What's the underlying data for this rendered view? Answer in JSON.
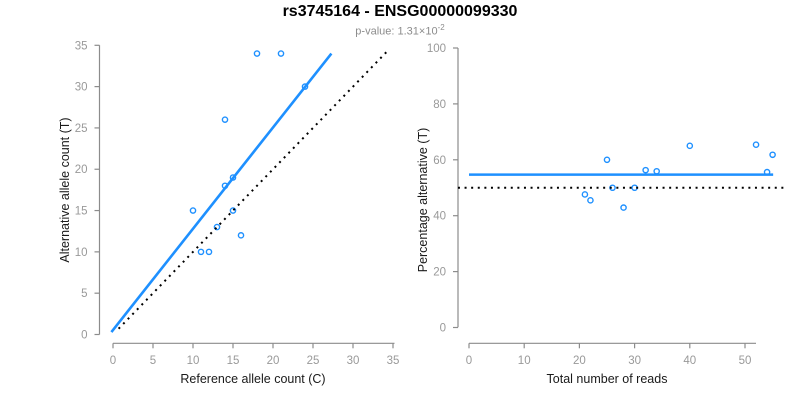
{
  "header": {
    "title": "rs3745164 - ENSG00000099330",
    "subtitle": {
      "prefix": "p-value: 1.31×10",
      "exponent": "-2"
    }
  },
  "colors": {
    "accent_blue": "#1E90FF",
    "line_black": "#000000",
    "axis_gray": "#8c8c8c",
    "tick_label_gray": "#999999",
    "subtitle_gray": "#8c8c8c"
  },
  "chart_data": [
    {
      "id": "left",
      "type": "scatter",
      "xlabel": "Reference allele count (C)",
      "ylabel": "Alternative allele count (T)",
      "xlim": [
        0,
        35
      ],
      "ylim": [
        0,
        35
      ],
      "grid": false,
      "xticks": [
        0,
        5,
        10,
        15,
        20,
        25,
        30,
        35
      ],
      "yticks": [
        0,
        5,
        10,
        15,
        20,
        25,
        30,
        35
      ],
      "points": [
        [
          18,
          34
        ],
        [
          21,
          34
        ],
        [
          24,
          30
        ],
        [
          14,
          26
        ],
        [
          15,
          19
        ],
        [
          14,
          18
        ],
        [
          10,
          15
        ],
        [
          15,
          15
        ],
        [
          13,
          13
        ],
        [
          16,
          12
        ],
        [
          11,
          10
        ],
        [
          12,
          10
        ]
      ],
      "lines": [
        {
          "name": "regression-line",
          "style": "solid",
          "color": "#1E90FF",
          "x1": -0.2,
          "y1": 0.3,
          "x2": 27.3,
          "y2": 34.0
        },
        {
          "name": "identity-line",
          "style": "dotted",
          "color": "#000000",
          "x1": 0.7,
          "y1": 0.7,
          "x2": 34.2,
          "y2": 34.2
        }
      ]
    },
    {
      "id": "right",
      "type": "scatter",
      "xlabel": "Total number of reads",
      "ylabel": "Percentage alternative (T)",
      "xlim": [
        0,
        57
      ],
      "ylim": [
        0,
        100
      ],
      "grid": false,
      "xticks": [
        0,
        10,
        20,
        30,
        40,
        50
      ],
      "yticks": [
        0,
        20,
        40,
        60,
        80,
        100
      ],
      "points": [
        [
          52,
          65.4
        ],
        [
          55,
          61.8
        ],
        [
          54,
          55.6
        ],
        [
          40,
          65.0
        ],
        [
          34,
          55.9
        ],
        [
          32,
          56.3
        ],
        [
          25,
          60.0
        ],
        [
          30,
          50.0
        ],
        [
          26,
          50.0
        ],
        [
          28,
          42.9
        ],
        [
          21,
          47.6
        ],
        [
          22,
          45.5
        ]
      ],
      "lines": [
        {
          "name": "fitted-percentage-line",
          "style": "solid",
          "color": "#1E90FF",
          "x1": 0,
          "y1": 54.7,
          "x2": 55.1,
          "y2": 54.7
        },
        {
          "name": "null-50-percent-line",
          "style": "dotted",
          "color": "#000000",
          "x1": -2,
          "y1": 50,
          "x2": 57,
          "y2": 50
        }
      ]
    }
  ]
}
